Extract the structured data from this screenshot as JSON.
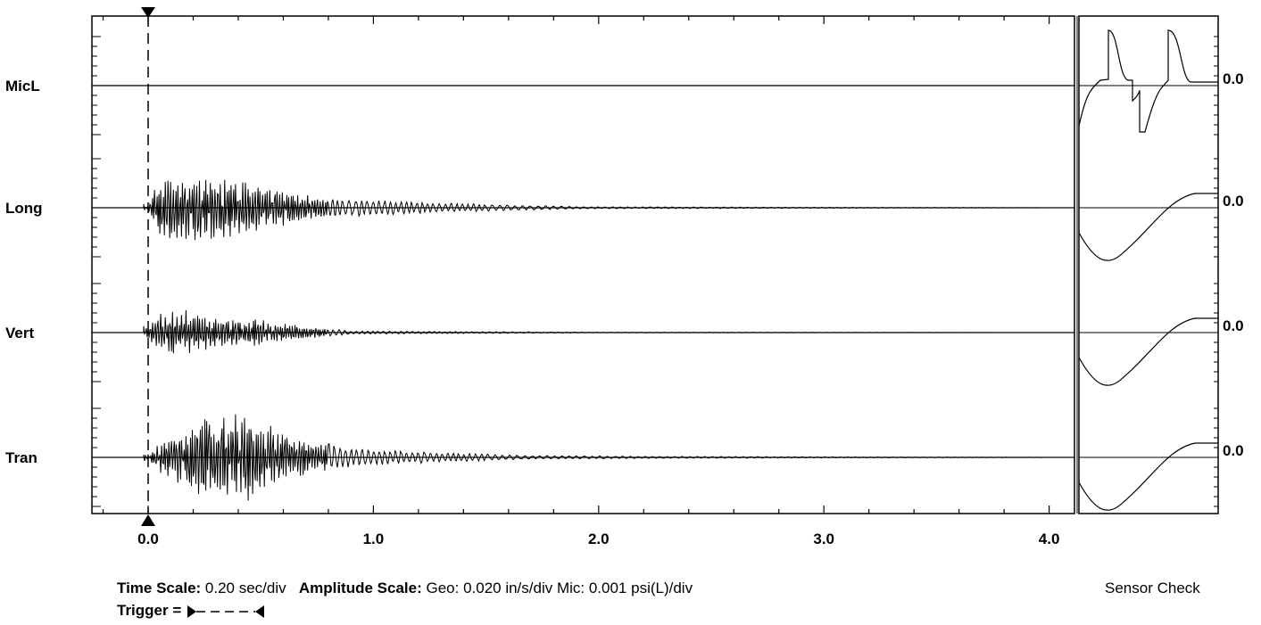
{
  "chart_data": {
    "type": "line",
    "title": "",
    "x_tick_labels": [
      "0.0",
      "1.0",
      "2.0",
      "3.0",
      "4.0"
    ],
    "x_ticks": [
      0.0,
      1.0,
      2.0,
      3.0,
      4.0
    ],
    "xlim": [
      -0.24,
      4.12
    ],
    "trigger_time": 0.0,
    "grid": false,
    "series": [
      {
        "name": "MicL",
        "right_label": "0.0",
        "envelope": {
          "t": [
            0.0,
            0.1,
            0.3,
            0.7,
            1.0
          ],
          "amp": [
            0.0,
            0.0,
            0.0,
            0.0,
            0.0
          ]
        }
      },
      {
        "name": "Long",
        "right_label": "0.0",
        "envelope": {
          "t": [
            0.0,
            0.05,
            0.12,
            0.3,
            0.5,
            0.7,
            0.9,
            1.2,
            1.6,
            2.0,
            4.1
          ],
          "amp": [
            0.2,
            1.6,
            2.0,
            1.8,
            1.2,
            0.7,
            0.45,
            0.3,
            0.15,
            0.05,
            0.0
          ]
        }
      },
      {
        "name": "Vert",
        "right_label": "0.0",
        "envelope": {
          "t": [
            0.0,
            0.05,
            0.12,
            0.3,
            0.5,
            0.7,
            0.9,
            1.5,
            2.0,
            4.1
          ],
          "amp": [
            0.4,
            1.2,
            1.5,
            1.0,
            0.8,
            0.4,
            0.1,
            0.05,
            0.02,
            0.0
          ]
        }
      },
      {
        "name": "Tran",
        "right_label": "0.0",
        "envelope": {
          "t": [
            0.0,
            0.05,
            0.15,
            0.3,
            0.42,
            0.6,
            0.9,
            1.3,
            1.7,
            2.3,
            4.1
          ],
          "amp": [
            0.2,
            0.8,
            1.6,
            2.3,
            2.5,
            1.3,
            0.5,
            0.25,
            0.1,
            0.05,
            0.0
          ]
        }
      }
    ]
  },
  "footer": {
    "time_label": "Time Scale:",
    "time_value": "0.20 sec/div",
    "amp_label": "Amplitude Scale:",
    "amp_value": "Geo: 0.020 in/s/div Mic: 0.001 psi(L)/div",
    "trigger_label": "Trigger =",
    "sensor_check": "Sensor Check"
  }
}
